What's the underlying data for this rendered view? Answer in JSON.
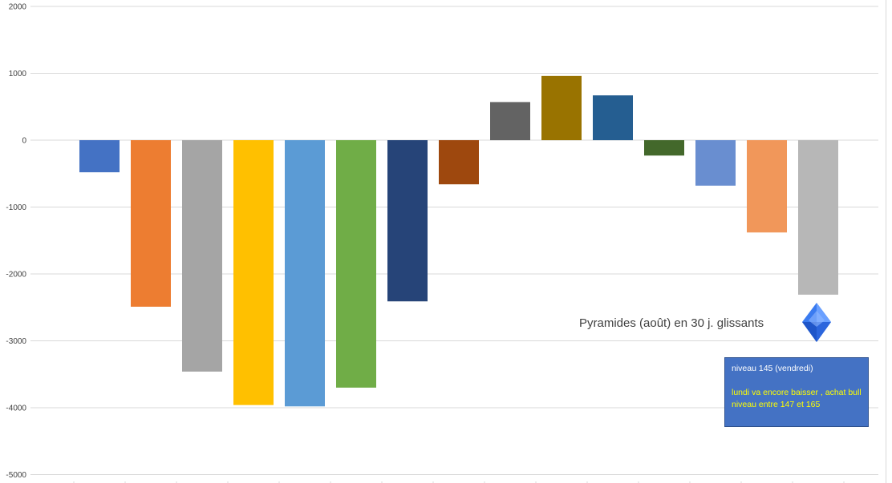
{
  "chart_data": {
    "type": "bar",
    "title": "Pyramides (août) en 30 j. glissants",
    "categories": [
      "",
      "",
      "",
      "",
      "",
      "",
      "",
      "",
      "",
      "",
      "",
      "",
      "",
      "",
      ""
    ],
    "values": [
      -480,
      -2490,
      -3460,
      -3960,
      -3980,
      -3700,
      -2410,
      -660,
      570,
      960,
      670,
      -230,
      -680,
      -1380,
      -2310
    ],
    "colors": [
      "#4472c4",
      "#ed7d31",
      "#a5a5a5",
      "#ffc000",
      "#5b9bd5",
      "#70ad47",
      "#264478",
      "#9e480e",
      "#636363",
      "#997300",
      "#255e91",
      "#43682b",
      "#698ed0",
      "#f1975a",
      "#b7b7b7"
    ],
    "ylim": [
      -5000,
      2000
    ],
    "yticks": [
      2000,
      1000,
      0,
      -1000,
      -2000,
      -3000,
      -4000,
      -5000
    ],
    "xlabel": "",
    "ylabel": "",
    "grid": true,
    "legend": "none"
  },
  "annotation": {
    "line1": "niveau 145 (vendredi)",
    "line2": "lundi va encore baisser , achat bull niveau entre 147 et 165",
    "background": "#4472c4",
    "color1": "#ffffff",
    "color2": "#ffff00"
  },
  "decoration": {
    "icon": "blue-diamond-gem-icon",
    "color": "#2f6fe0"
  }
}
